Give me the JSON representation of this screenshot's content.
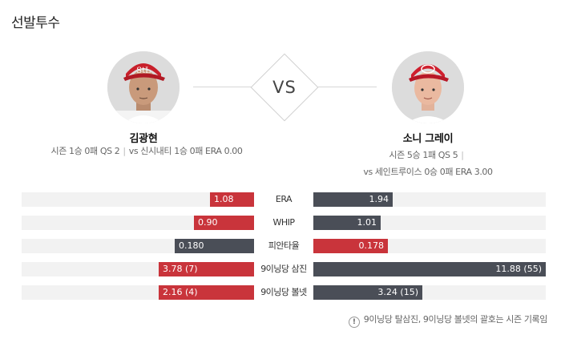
{
  "section_title": "선발투수",
  "vs_text": "VS",
  "left_pitcher": {
    "name": "김광현",
    "team": "cardinals",
    "season_line": "시즌 1승 0패 QS 2",
    "vs_line": "vs 신시내티 1승 0패 ERA 0.00"
  },
  "right_pitcher": {
    "name": "소니 그레이",
    "team": "reds",
    "season_line": "시즌 5승 1패 QS 5",
    "vs_line": "vs 세인트루이스 0승 0패 ERA 3.00"
  },
  "colors": {
    "red": "#c9343b",
    "gray": "#4a4e57",
    "track": "#f2f2f2"
  },
  "rows": [
    {
      "label": "ERA",
      "left": {
        "text": "1.08",
        "fill": 0.19,
        "color": "red"
      },
      "right": {
        "text": "1.94",
        "fill": 0.34,
        "color": "gray"
      }
    },
    {
      "label": "WHIP",
      "left": {
        "text": "0.90",
        "fill": 0.26,
        "color": "red"
      },
      "right": {
        "text": "1.01",
        "fill": 0.29,
        "color": "gray"
      }
    },
    {
      "label": "피안타율",
      "left": {
        "text": "0.180",
        "fill": 0.34,
        "color": "gray"
      },
      "right": {
        "text": "0.178",
        "fill": 0.32,
        "color": "red"
      }
    },
    {
      "label": "9이닝당 삼진",
      "left": {
        "text": "3.78 (7)",
        "fill": 0.41,
        "color": "red"
      },
      "right": {
        "text": "11.88 (55)",
        "fill": 1.0,
        "color": "gray"
      }
    },
    {
      "label": "9이닝당 볼넷",
      "left": {
        "text": "2.16 (4)",
        "fill": 0.41,
        "color": "red"
      },
      "right": {
        "text": "3.24 (15)",
        "fill": 0.47,
        "color": "gray"
      }
    }
  ],
  "footnote": "9이닝당 탈삼진, 9이닝당 볼넷의 괄호는 시즌 기록임",
  "info_icon": "!"
}
